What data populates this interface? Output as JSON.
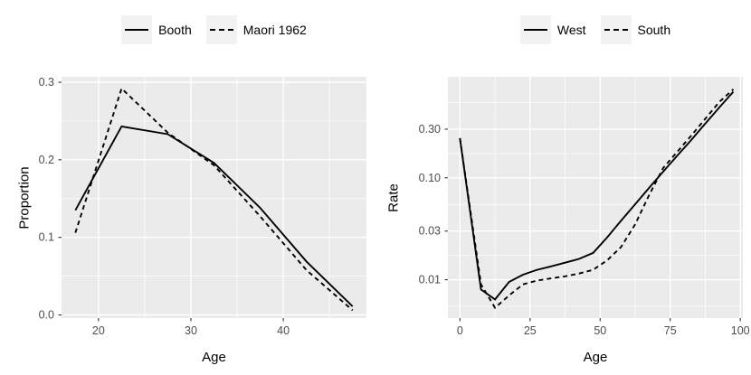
{
  "style": {
    "panel_bg": "#EBEBEB",
    "grid_color": "#FFFFFF",
    "tick_text_color": "#4D4D4D",
    "tick_mark_color": "#333333",
    "line_color": "#000000",
    "legend_key_bg": "#F2F2F2",
    "background": "#FFFFFF"
  },
  "chart_data": [
    {
      "type": "line",
      "title": "",
      "xlabel": "Age",
      "ylabel": "Proportion",
      "legend_position": "top",
      "grid": true,
      "yscale": "linear",
      "xlim": [
        16,
        49
      ],
      "ylim": [
        -0.004,
        0.307
      ],
      "x_ticks": [
        20,
        30,
        40
      ],
      "x_tick_labels": [
        "20",
        "30",
        "40"
      ],
      "x_minor": [
        25,
        35,
        45
      ],
      "y_ticks": [
        0.0,
        0.1,
        0.2,
        0.3
      ],
      "y_tick_labels": [
        "0.0",
        "0.1",
        "0.2",
        "0.3"
      ],
      "y_minor": [
        0.05,
        0.15,
        0.25
      ],
      "x": [
        17.5,
        22.5,
        27.5,
        32.5,
        37.5,
        42.5,
        47.5
      ],
      "series": [
        {
          "name": "Booth",
          "linestyle": "solid",
          "values": [
            0.135,
            0.243,
            0.233,
            0.196,
            0.138,
            0.069,
            0.011
          ]
        },
        {
          "name": "Maori 1962",
          "linestyle": "dashed",
          "values": [
            0.106,
            0.292,
            0.235,
            0.193,
            0.127,
            0.058,
            0.006
          ]
        }
      ]
    },
    {
      "type": "line",
      "title": "",
      "xlabel": "Age",
      "ylabel": "Rate",
      "legend_position": "top",
      "grid": true,
      "yscale": "log",
      "xlim": [
        -4.3,
        100.9
      ],
      "ylim": [
        0.0042,
        0.98
      ],
      "x_ticks": [
        0,
        25,
        50,
        75,
        100
      ],
      "x_tick_labels": [
        "0",
        "25",
        "50",
        "75",
        "100"
      ],
      "x_minor": [
        12.5,
        37.5,
        62.5,
        87.5
      ],
      "y_ticks": [
        0.01,
        0.03,
        0.1,
        0.3
      ],
      "y_tick_labels": [
        "0.01",
        "0.03",
        "0.10",
        "0.30"
      ],
      "y_minor": [
        0.00548,
        0.0173,
        0.0548,
        0.173,
        0.548
      ],
      "x": [
        0,
        7.5,
        12.5,
        17.5,
        22.5,
        27.5,
        32.5,
        37.5,
        42.5,
        47.5,
        52.5,
        57.5,
        62.5,
        67.5,
        72.5,
        77.5,
        82.5,
        87.5,
        92.5,
        97.5
      ],
      "series": [
        {
          "name": "West",
          "linestyle": "solid",
          "values": [
            0.245,
            0.008,
            0.0064,
            0.0095,
            0.0112,
            0.0125,
            0.0135,
            0.0147,
            0.016,
            0.0183,
            0.026,
            0.038,
            0.055,
            0.08,
            0.115,
            0.165,
            0.235,
            0.34,
            0.49,
            0.7
          ]
        },
        {
          "name": "South",
          "linestyle": "dashed",
          "values": [
            0.245,
            0.009,
            0.0053,
            0.007,
            0.009,
            0.0098,
            0.0103,
            0.0108,
            0.0115,
            0.0125,
            0.0155,
            0.021,
            0.035,
            0.068,
            0.125,
            0.18,
            0.26,
            0.38,
            0.555,
            0.74
          ]
        }
      ]
    }
  ]
}
